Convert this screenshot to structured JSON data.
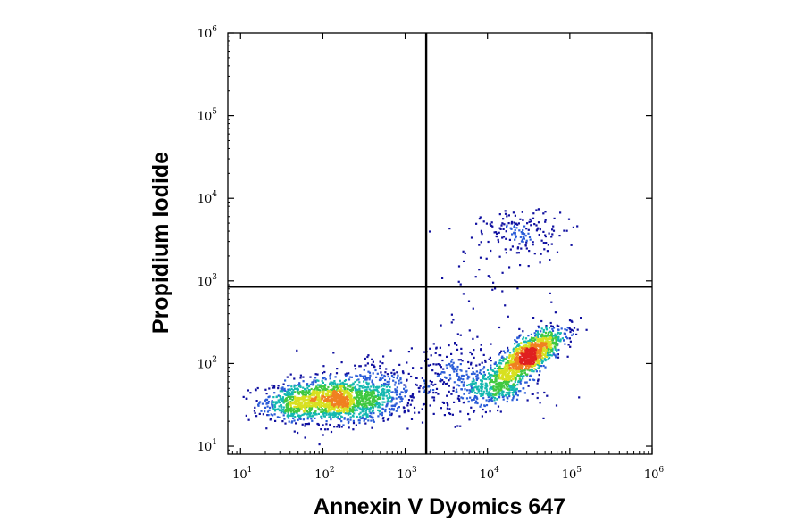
{
  "chart_data": {
    "type": "scatter",
    "title": "",
    "xlabel": "Annexin V Dyomics 647",
    "ylabel": "Propidium Iodide",
    "x_scale": "log",
    "y_scale": "log",
    "xlim": [
      7,
      1000000
    ],
    "ylim": [
      8,
      1000000
    ],
    "grid": false,
    "x_ticks": [
      {
        "value": 10,
        "label": "10",
        "exp": "1"
      },
      {
        "value": 100,
        "label": "10",
        "exp": "2"
      },
      {
        "value": 1000,
        "label": "10",
        "exp": "3"
      },
      {
        "value": 10000,
        "label": "10",
        "exp": "4"
      },
      {
        "value": 100000,
        "label": "10",
        "exp": "5"
      },
      {
        "value": 1000000,
        "label": "10",
        "exp": "6"
      }
    ],
    "y_ticks": [
      {
        "value": 10,
        "label": "10",
        "exp": "1"
      },
      {
        "value": 100,
        "label": "10",
        "exp": "2"
      },
      {
        "value": 1000,
        "label": "10",
        "exp": "3"
      },
      {
        "value": 10000,
        "label": "10",
        "exp": "4"
      },
      {
        "value": 100000,
        "label": "10",
        "exp": "5"
      },
      {
        "value": 1000000,
        "label": "10",
        "exp": "6"
      }
    ],
    "gates": {
      "x": 1800,
      "y": 850
    },
    "populations": [
      {
        "cx": 150,
        "cy": 35,
        "sx_log": 0.38,
        "sy_log": 0.13,
        "n": 1400
      },
      {
        "cx": 40,
        "cy": 33,
        "sx_log": 0.16,
        "sy_log": 0.1,
        "n": 250
      },
      {
        "cx": 500,
        "cy": 60,
        "sx_log": 0.3,
        "sy_log": 0.18,
        "n": 180
      },
      {
        "cx": 30000,
        "cy": 120,
        "sx_log": 0.22,
        "sy_log": 0.18,
        "n": 1200
      },
      {
        "cx": 11000,
        "cy": 50,
        "sx_log": 0.25,
        "sy_log": 0.12,
        "n": 350
      },
      {
        "cx": 3500,
        "cy": 70,
        "sx_log": 0.22,
        "sy_log": 0.25,
        "n": 180
      },
      {
        "cx": 28000,
        "cy": 4000,
        "sx_log": 0.25,
        "sy_log": 0.12,
        "n": 140
      },
      {
        "cx": 15000,
        "cy": 1500,
        "sx_log": 0.4,
        "sy_log": 0.35,
        "n": 60
      }
    ],
    "density_colors": [
      "#1010a0",
      "#2a5cd8",
      "#14b8b0",
      "#40c840",
      "#d8e020",
      "#f08020",
      "#e02020"
    ]
  }
}
